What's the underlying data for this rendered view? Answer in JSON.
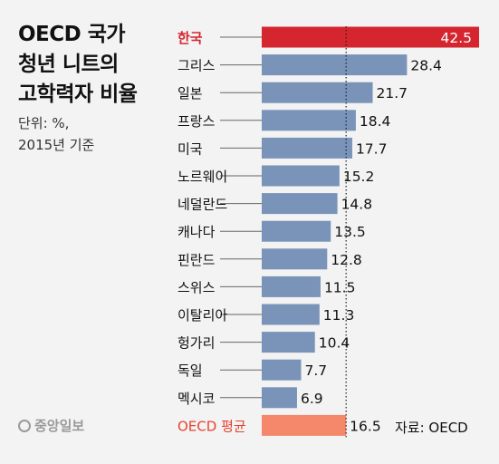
{
  "title_lines": [
    "OECD 국가",
    "청년 니트의",
    "고학력자 비율"
  ],
  "unit_note": "단위: %,",
  "year_note": "2015년 기준",
  "source": "자료: OECD",
  "logo_text": "중앙일보",
  "colors": {
    "background": "#f3f3f3",
    "bar": "#7a93b8",
    "highlight_bar": "#d5252f",
    "highlight_label": "#d5252f",
    "average_bar": "#f5876b",
    "average_label": "#e8412f",
    "text": "#111111"
  },
  "chart_data": {
    "type": "bar",
    "orientation": "horizontal",
    "categories": [
      "한국",
      "그리스",
      "일본",
      "프랑스",
      "미국",
      "노르웨이",
      "네덜란드",
      "캐나다",
      "핀란드",
      "스위스",
      "이탈리아",
      "헝가리",
      "독일",
      "멕시코",
      "OECD 평균"
    ],
    "values": [
      42.5,
      28.4,
      21.7,
      18.4,
      17.7,
      15.2,
      14.8,
      13.5,
      12.8,
      11.5,
      11.3,
      10.4,
      7.7,
      6.9,
      16.5
    ],
    "value_labels": [
      "42.5",
      "28.4",
      "21.7",
      "18.4",
      "17.7",
      "15.2",
      "14.8",
      "13.5",
      "12.8",
      "11.5",
      "11.3",
      "10.4",
      "7.7",
      "6.9",
      "16.5"
    ],
    "highlight": "한국",
    "average_category": "OECD 평균",
    "reference_line": 16.5,
    "xlim": [
      0,
      42.5
    ],
    "xlabel": "",
    "ylabel": "",
    "grid": false,
    "legend": "none"
  }
}
